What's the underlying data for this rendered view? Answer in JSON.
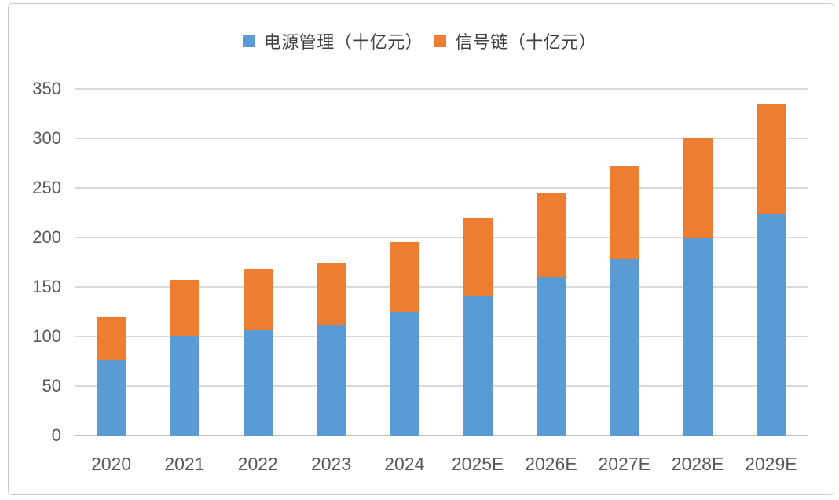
{
  "chart_data": {
    "type": "bar",
    "stacked": true,
    "title": "",
    "categories": [
      "2020",
      "2021",
      "2022",
      "2023",
      "2024",
      "2025E",
      "2026E",
      "2027E",
      "2028E",
      "2029E"
    ],
    "series": [
      {
        "name": "电源管理（十亿元）",
        "color": "#5B9BD5",
        "values": [
          76,
          100,
          106,
          112,
          125,
          141,
          160,
          178,
          199,
          224
        ]
      },
      {
        "name": "信号链（十亿元）",
        "color": "#ED7D31",
        "values": [
          44,
          57,
          62,
          63,
          70,
          79,
          85,
          94,
          101,
          111
        ]
      }
    ],
    "totals": [
      120,
      157,
      168,
      175,
      195,
      220,
      245,
      272,
      300,
      335
    ],
    "ylim": [
      0,
      350
    ],
    "yticks": [
      0,
      50,
      100,
      150,
      200,
      250,
      300,
      350
    ],
    "grid": true,
    "legend_position": "top-center"
  },
  "colors": {
    "background": "#FFFFFF",
    "frame_border": "#C9C9C9",
    "gridline": "#D9D9D9",
    "baseline": "#BFBFBF",
    "axis_text": "#595959",
    "legend_text": "#404040"
  }
}
